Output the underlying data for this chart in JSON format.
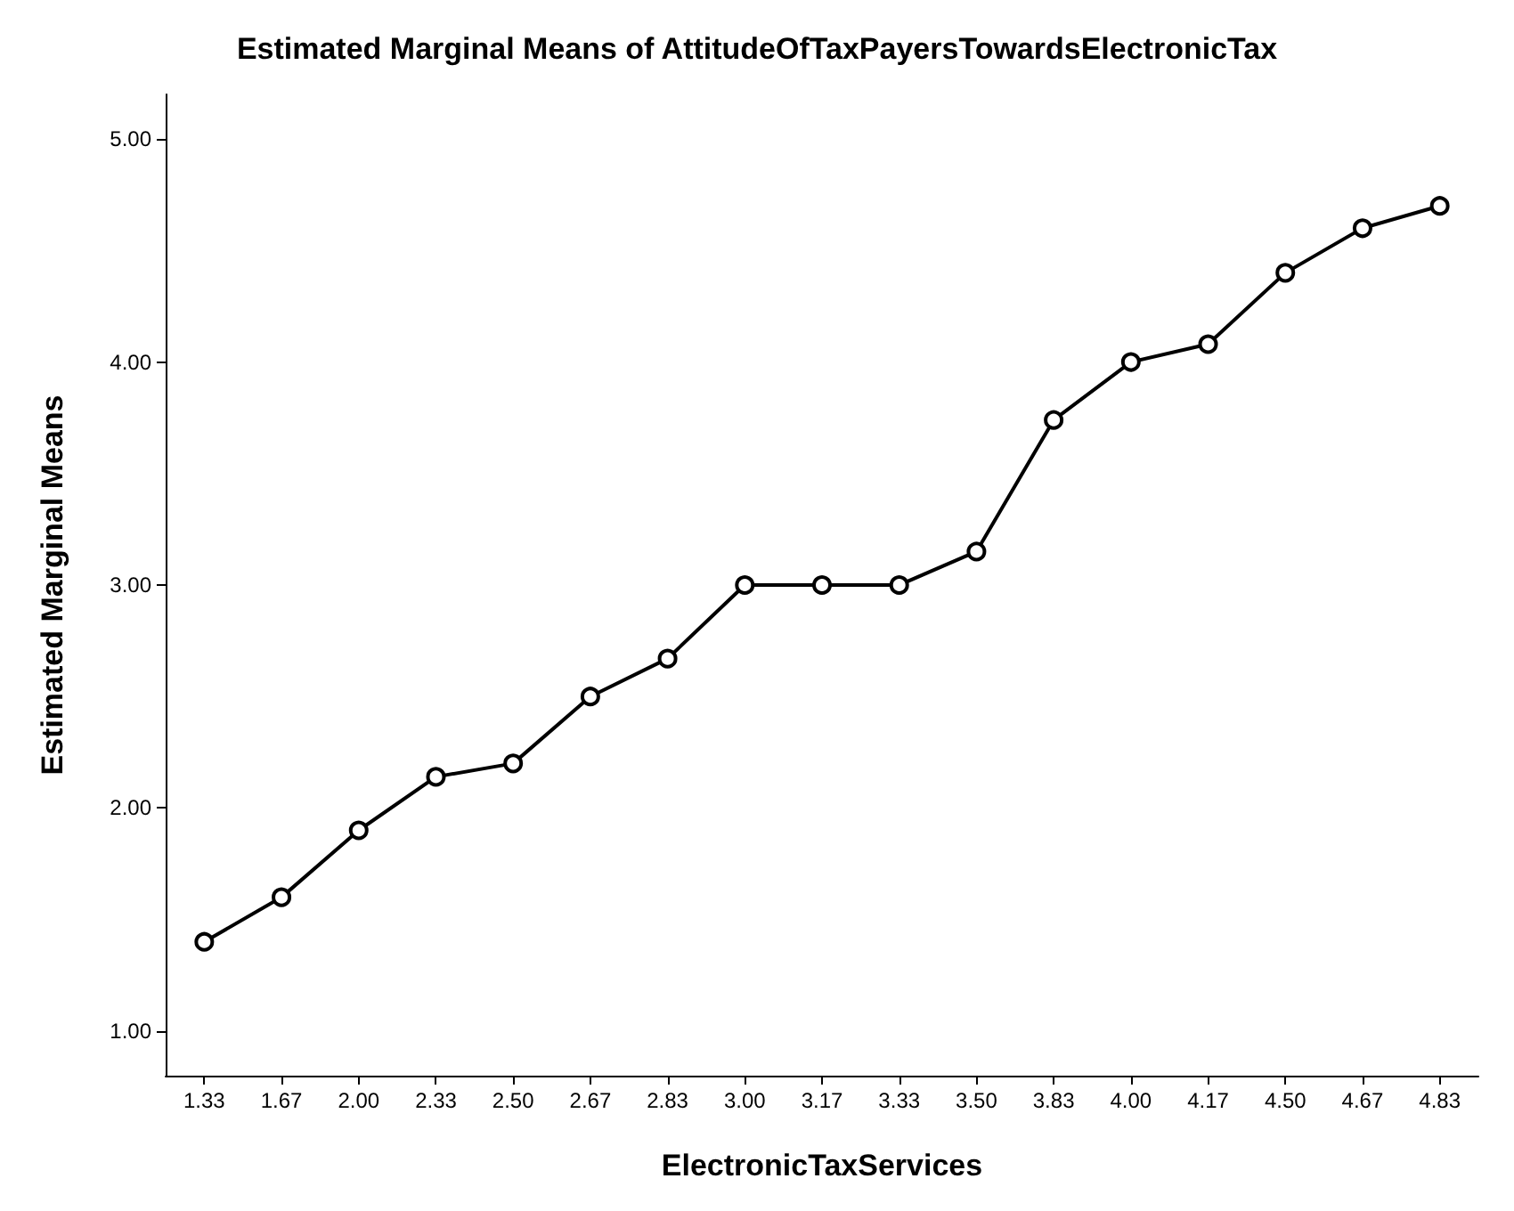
{
  "chart_data": {
    "type": "line",
    "title": "Estimated Marginal Means of AttitudeOfTaxPayersTowardsElectronicTax",
    "xlabel": "ElectronicTaxServices",
    "ylabel": "Estimated Marginal Means",
    "categories": [
      "1.33",
      "1.67",
      "2.00",
      "2.33",
      "2.50",
      "2.67",
      "2.83",
      "3.00",
      "3.17",
      "3.33",
      "3.50",
      "3.83",
      "4.00",
      "4.17",
      "4.50",
      "4.67",
      "4.83"
    ],
    "series": [
      {
        "color": "#000000",
        "values": [
          1.4,
          1.6,
          1.9,
          2.14,
          2.2,
          2.5,
          2.67,
          3.0,
          3.0,
          3.0,
          3.15,
          3.74,
          4.0,
          4.08,
          4.4,
          4.6,
          4.7
        ]
      }
    ],
    "ylim": [
      0.8,
      5.2
    ],
    "yticks": [
      {
        "value": 1,
        "label": "1.00"
      },
      {
        "value": 2,
        "label": "2.00"
      },
      {
        "value": 3,
        "label": "3.00"
      },
      {
        "value": 4,
        "label": "4.00"
      },
      {
        "value": 5,
        "label": "5.00"
      }
    ],
    "grid": false,
    "marker": "circle",
    "line_style": "solid"
  }
}
